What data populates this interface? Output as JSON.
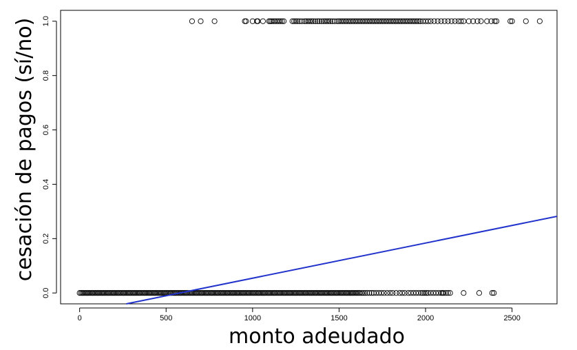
{
  "chart_data": {
    "type": "scatter",
    "xlabel": "monto adeudado",
    "ylabel": "cesación de pagos (sí/no)",
    "xlim": [
      -110,
      2760
    ],
    "ylim": [
      -0.04,
      1.04
    ],
    "x_ticks": [
      0,
      500,
      1000,
      1500,
      2000,
      2500
    ],
    "x_tick_labels": [
      "0",
      "500",
      "1000",
      "1500",
      "2000",
      "2500"
    ],
    "y_ticks": [
      0.0,
      0.2,
      0.4,
      0.6,
      0.8,
      1.0
    ],
    "y_tick_labels": [
      "0.0",
      "0.2",
      "0.4",
      "0.6",
      "0.8",
      "1.0"
    ],
    "grid": false,
    "point_color": "#000000",
    "line_color": "#2233cc",
    "regression_line": {
      "x": [
        270,
        2760
      ],
      "y": [
        -0.04,
        0.282
      ]
    },
    "series": [
      {
        "marker": "open-circle",
        "y_value": 0,
        "x": [
          0,
          8,
          15,
          22,
          30,
          38,
          45,
          52,
          60,
          68,
          75,
          82,
          90,
          98,
          105,
          112,
          120,
          128,
          135,
          142,
          150,
          158,
          165,
          172,
          180,
          188,
          195,
          202,
          210,
          218,
          225,
          232,
          240,
          248,
          255,
          262,
          270,
          278,
          285,
          292,
          300,
          308,
          315,
          322,
          330,
          338,
          345,
          352,
          360,
          368,
          375,
          382,
          390,
          398,
          405,
          412,
          420,
          428,
          435,
          442,
          450,
          458,
          465,
          472,
          480,
          488,
          495,
          502,
          510,
          518,
          525,
          532,
          540,
          548,
          555,
          562,
          570,
          578,
          585,
          592,
          600,
          608,
          615,
          622,
          630,
          638,
          645,
          652,
          660,
          668,
          675,
          682,
          690,
          698,
          705,
          712,
          720,
          728,
          735,
          742,
          750,
          758,
          765,
          772,
          780,
          788,
          795,
          802,
          810,
          818,
          825,
          832,
          840,
          848,
          855,
          862,
          870,
          878,
          885,
          892,
          900,
          908,
          915,
          922,
          930,
          938,
          945,
          952,
          960,
          968,
          975,
          982,
          990,
          998,
          1005,
          1012,
          1020,
          1028,
          1035,
          1042,
          1050,
          1058,
          1065,
          1072,
          1080,
          1088,
          1095,
          1102,
          1110,
          1118,
          1125,
          1132,
          1140,
          1148,
          1155,
          1162,
          1170,
          1178,
          1185,
          1192,
          1200,
          1208,
          1215,
          1222,
          1230,
          1238,
          1245,
          1252,
          1260,
          1268,
          1275,
          1282,
          1290,
          1298,
          1305,
          1312,
          1320,
          1328,
          1335,
          1342,
          1350,
          1358,
          1365,
          1372,
          1380,
          1388,
          1395,
          1402,
          1410,
          1418,
          1425,
          1432,
          1440,
          1448,
          1455,
          1462,
          1470,
          1478,
          1485,
          1492,
          1500,
          1508,
          1515,
          1522,
          1530,
          1538,
          1545,
          1552,
          1560,
          1568,
          1575,
          1582,
          1590,
          1598,
          1605,
          1612,
          1620,
          1630,
          1640,
          1650,
          1662,
          1675,
          1688,
          1700,
          1715,
          1730,
          1745,
          1760,
          1778,
          1795,
          1810,
          1830,
          1850,
          1865,
          1880,
          1900,
          1915,
          1930,
          1945,
          1960,
          1975,
          1985,
          1995,
          2005,
          2015,
          2030,
          2045,
          2060,
          2075,
          2090,
          2098,
          2105,
          2118,
          2130,
          2142,
          2220,
          2310,
          2385,
          2395
        ]
      },
      {
        "marker": "open-circle",
        "y_value": 1,
        "x": [
          650,
          700,
          780,
          955,
          962,
          1000,
          1025,
          1030,
          1060,
          1095,
          1102,
          1110,
          1120,
          1130,
          1140,
          1150,
          1160,
          1170,
          1180,
          1230,
          1240,
          1250,
          1260,
          1272,
          1285,
          1300,
          1310,
          1320,
          1330,
          1340,
          1350,
          1362,
          1375,
          1385,
          1398,
          1410,
          1420,
          1430,
          1440,
          1450,
          1462,
          1475,
          1490,
          1500,
          1510,
          1520,
          1530,
          1540,
          1550,
          1560,
          1570,
          1580,
          1590,
          1600,
          1610,
          1620,
          1630,
          1640,
          1650,
          1660,
          1670,
          1680,
          1690,
          1700,
          1710,
          1720,
          1730,
          1740,
          1750,
          1760,
          1770,
          1780,
          1790,
          1800,
          1810,
          1820,
          1830,
          1840,
          1850,
          1860,
          1870,
          1880,
          1890,
          1900,
          1910,
          1920,
          1930,
          1940,
          1950,
          1960,
          1970,
          1985,
          2000,
          2015,
          2030,
          2050,
          2070,
          2090,
          2110,
          2130,
          2150,
          2170,
          2190,
          2205,
          2220,
          2250,
          2275,
          2300,
          2320,
          2355,
          2380,
          2400,
          2410,
          2490,
          2500,
          2580,
          2660
        ]
      }
    ]
  }
}
